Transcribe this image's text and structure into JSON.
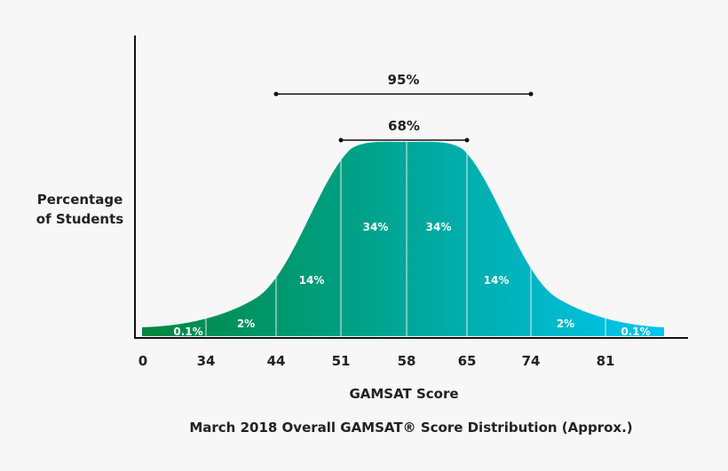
{
  "chart_data": {
    "type": "area",
    "title": "March 2018 Overall GAMSAT® Score Distribution (Approx.)",
    "xlabel": "GAMSAT Score",
    "ylabel": "Percentage of Students",
    "ylabel_lines": [
      "Percentage",
      "of Students"
    ],
    "x_ticks": [
      "0",
      "34",
      "44",
      "51",
      "58",
      "65",
      "74",
      "81"
    ],
    "segments": [
      {
        "range": [
          "0",
          "34"
        ],
        "label": "0.1%"
      },
      {
        "range": [
          "34",
          "44"
        ],
        "label": "2%"
      },
      {
        "range": [
          "44",
          "51"
        ],
        "label": "14%"
      },
      {
        "range": [
          "51",
          "58"
        ],
        "label": "34%"
      },
      {
        "range": [
          "58",
          "65"
        ],
        "label": "34%"
      },
      {
        "range": [
          "65",
          "74"
        ],
        "label": "14%"
      },
      {
        "range": [
          "74",
          "81"
        ],
        "label": "2%"
      },
      {
        "range": [
          "81",
          ""
        ],
        "label": "0.1%"
      }
    ],
    "brackets": [
      {
        "label": "95%",
        "from": "44",
        "to": "74"
      },
      {
        "label": "68%",
        "from": "51",
        "to": "65"
      }
    ],
    "grid": false,
    "colors": {
      "start": "#00873f",
      "end": "#00c6f0"
    }
  }
}
